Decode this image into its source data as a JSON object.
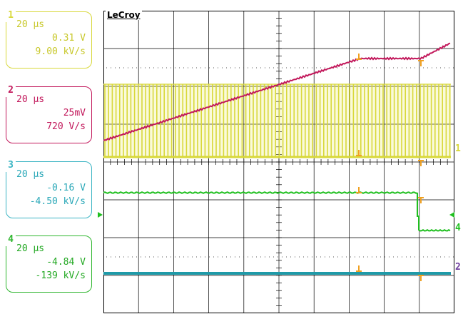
{
  "brand": "LeCroy",
  "colors": {
    "ch1": "#d8d83a",
    "ch2": "#c2185b",
    "ch3": "#1fbf1f",
    "ch4": "#1f9aa8",
    "ch3_box": "#3cb5c4",
    "ch4_box": "#2fb62f",
    "marker": "#f0a020",
    "grid": "#000000",
    "fill_ch1": "#eded6a"
  },
  "channels": [
    {
      "num": "1",
      "timebase": "20 µs",
      "volts": "0.31 V",
      "rate": "9.00 kV/s"
    },
    {
      "num": "2",
      "timebase": "20 µs",
      "volts": "25mV",
      "rate": "720 V/s"
    },
    {
      "num": "3",
      "timebase": "20 µs",
      "volts": "-0.16 V",
      "rate": "-4.50 kV/s"
    },
    {
      "num": "4",
      "timebase": "20 µs",
      "volts": "-4.84 V",
      "rate": "-139 kV/s"
    }
  ],
  "trace_labels": {
    "ch1": "1",
    "ch4": "4",
    "ch2": "2"
  }
}
